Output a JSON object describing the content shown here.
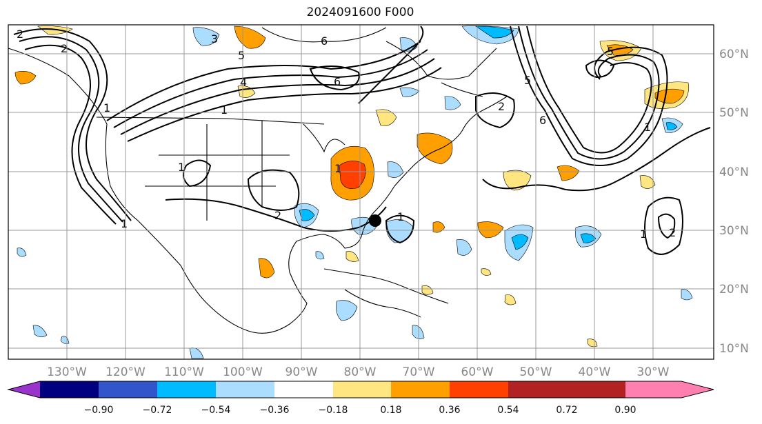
{
  "map": {
    "title": "2024091600 F000",
    "lon_labels": [
      "130°W",
      "120°W",
      "110°W",
      "100°W",
      "90°W",
      "80°W",
      "70°W",
      "60°W",
      "50°W",
      "40°W",
      "30°W"
    ],
    "lat_labels": [
      "60°N",
      "50°N",
      "40°N",
      "30°N",
      "20°N",
      "10°N"
    ],
    "contour_labels": [
      "2",
      "3",
      "5",
      "6",
      "2",
      "4",
      "6",
      "5",
      "1",
      "1",
      "2",
      "1",
      "5",
      "6",
      "1",
      "1",
      "2",
      "1",
      "1",
      "1",
      "2"
    ],
    "marker": "storm-center-dot"
  },
  "colorbar": {
    "tick_labels": [
      "−0.90",
      "−0.72",
      "−0.54",
      "−0.36",
      "−0.18",
      "0.18",
      "0.36",
      "0.54",
      "0.72",
      "0.90"
    ],
    "colors": [
      "#9933cc",
      "#000080",
      "#3355cc",
      "#00bbff",
      "#aaddff",
      "#ffffff",
      "#ffe680",
      "#ffa000",
      "#ff4000",
      "#b22222",
      "#ff80b0"
    ]
  }
}
